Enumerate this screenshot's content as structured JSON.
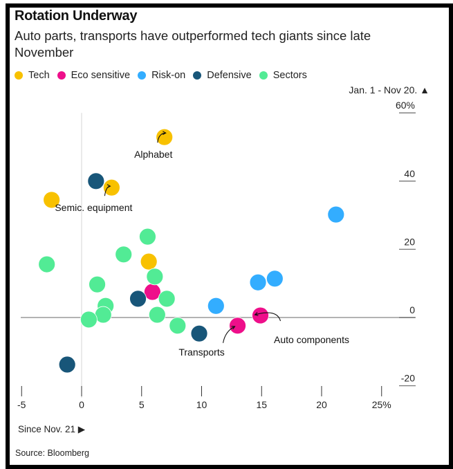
{
  "title": "Rotation Underway",
  "subtitle": "Auto parts, transports have outperformed tech giants since late November",
  "source": "Source: Bloomberg",
  "chart_data": {
    "type": "scatter",
    "title": "Rotation Underway",
    "subtitle": "Auto parts, transports have outperformed tech giants since late November",
    "xlabel": "Since Nov. 21 ▶",
    "ylabel": "Jan. 1 - Nov 20. ▲",
    "xlim": [
      -5,
      26
    ],
    "ylim": [
      -22,
      62
    ],
    "x_ticks": [
      {
        "value": -5,
        "label": "-5"
      },
      {
        "value": 0,
        "label": "0"
      },
      {
        "value": 5,
        "label": "5"
      },
      {
        "value": 10,
        "label": "10"
      },
      {
        "value": 15,
        "label": "15"
      },
      {
        "value": 20,
        "label": "20"
      },
      {
        "value": 25,
        "label": "25%"
      }
    ],
    "y_ticks": [
      {
        "value": 60,
        "label": "60%"
      },
      {
        "value": 40,
        "label": "40"
      },
      {
        "value": 20,
        "label": "20"
      },
      {
        "value": 0,
        "label": "0"
      },
      {
        "value": -20,
        "label": "-20"
      }
    ],
    "grid": false,
    "legend_position": "top-left",
    "series": [
      {
        "name": "Tech",
        "color": "#F8C100",
        "points": [
          {
            "x": 6.9,
            "y": 52.9,
            "label": "Alphabet"
          },
          {
            "x": 2.5,
            "y": 38.1,
            "label": "Semic. equipment"
          },
          {
            "x": -2.5,
            "y": 34.5
          },
          {
            "x": 5.6,
            "y": 16.4
          }
        ]
      },
      {
        "name": "Eco sensitive",
        "color": "#EE0F8A",
        "points": [
          {
            "x": 5.9,
            "y": 7.5
          },
          {
            "x": 14.9,
            "y": 0.6,
            "label": "Auto components"
          },
          {
            "x": 13.0,
            "y": -2.4,
            "label": "Transports"
          }
        ]
      },
      {
        "name": "Risk-on",
        "color": "#33ADFF",
        "points": [
          {
            "x": 21.2,
            "y": 30.2
          },
          {
            "x": 14.7,
            "y": 10.3
          },
          {
            "x": 16.1,
            "y": 11.4
          },
          {
            "x": 11.2,
            "y": 3.4
          }
        ]
      },
      {
        "name": "Defensive",
        "color": "#185679",
        "points": [
          {
            "x": 1.2,
            "y": 40.0
          },
          {
            "x": 4.7,
            "y": 5.5
          },
          {
            "x": -1.2,
            "y": -13.8
          },
          {
            "x": 9.8,
            "y": -4.7
          }
        ]
      },
      {
        "name": "Sectors",
        "color": "#52EB95",
        "points": [
          {
            "x": -2.9,
            "y": 15.6
          },
          {
            "x": 5.5,
            "y": 23.7
          },
          {
            "x": 3.5,
            "y": 18.5
          },
          {
            "x": 6.1,
            "y": 12.0
          },
          {
            "x": 1.3,
            "y": 9.7
          },
          {
            "x": 7.1,
            "y": 5.5
          },
          {
            "x": 2.0,
            "y": 3.4
          },
          {
            "x": 1.8,
            "y": 0.8
          },
          {
            "x": 0.6,
            "y": -0.6
          },
          {
            "x": 6.3,
            "y": 0.8
          },
          {
            "x": 8.0,
            "y": -2.4
          }
        ]
      }
    ],
    "annotations": [
      {
        "text": "Alphabet",
        "series": "Tech",
        "x": 6.9,
        "y": 52.9
      },
      {
        "text": "Semic. equipment",
        "series": "Tech",
        "x": 2.5,
        "y": 38.1
      },
      {
        "text": "Auto components",
        "series": "Eco sensitive",
        "x": 14.9,
        "y": 0.6
      },
      {
        "text": "Transports",
        "series": "Eco sensitive",
        "x": 13.0,
        "y": -2.4
      }
    ]
  }
}
